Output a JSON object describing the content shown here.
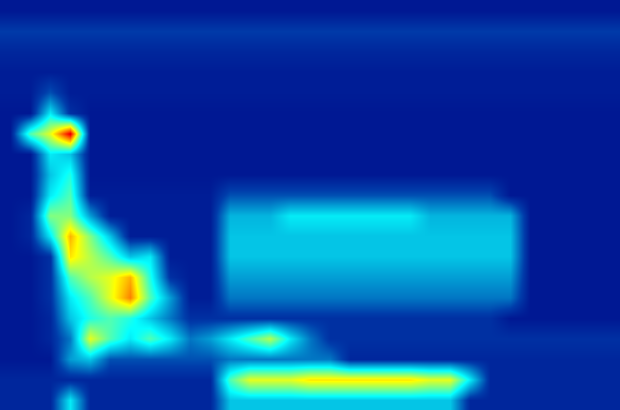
{
  "chart_data": {
    "type": "heatmap",
    "tick_labels": false,
    "zlim": [
      0,
      1
    ],
    "cells": [
      [
        0.05,
        0.05,
        0.05,
        0.05,
        0.05,
        0.05,
        0.05,
        0.05,
        0.05,
        0.05,
        0.05,
        0.05,
        0.05,
        0.05,
        0.05,
        0.05,
        0.05,
        0.05,
        0.05,
        0.05,
        0.05,
        0.05,
        0.05,
        0.05,
        0.05,
        0.05,
        0.05,
        0.05,
        0.05,
        0.05,
        0.05
      ],
      [
        0.12,
        0.12,
        0.12,
        0.12,
        0.12,
        0.12,
        0.12,
        0.12,
        0.12,
        0.12,
        0.12,
        0.12,
        0.12,
        0.12,
        0.12,
        0.12,
        0.12,
        0.12,
        0.12,
        0.12,
        0.12,
        0.12,
        0.12,
        0.12,
        0.12,
        0.12,
        0.12,
        0.12,
        0.12,
        0.12,
        0.12
      ],
      [
        0.08,
        0.08,
        0.08,
        0.08,
        0.08,
        0.08,
        0.08,
        0.08,
        0.08,
        0.08,
        0.08,
        0.08,
        0.08,
        0.08,
        0.08,
        0.08,
        0.08,
        0.08,
        0.08,
        0.08,
        0.08,
        0.08,
        0.08,
        0.08,
        0.08,
        0.08,
        0.08,
        0.08,
        0.08,
        0.08,
        0.08
      ],
      [
        0.06,
        0.06,
        0.06,
        0.06,
        0.06,
        0.06,
        0.06,
        0.06,
        0.06,
        0.06,
        0.06,
        0.06,
        0.06,
        0.06,
        0.06,
        0.06,
        0.06,
        0.06,
        0.06,
        0.06,
        0.06,
        0.06,
        0.06,
        0.06,
        0.06,
        0.06,
        0.06,
        0.06,
        0.06,
        0.06,
        0.06
      ],
      [
        0.06,
        0.06,
        0.15,
        0.06,
        0.06,
        0.06,
        0.06,
        0.06,
        0.06,
        0.06,
        0.06,
        0.06,
        0.06,
        0.06,
        0.06,
        0.06,
        0.06,
        0.06,
        0.06,
        0.06,
        0.06,
        0.06,
        0.06,
        0.06,
        0.06,
        0.06,
        0.06,
        0.06,
        0.06,
        0.06,
        0.06
      ],
      [
        0.05,
        0.05,
        0.35,
        0.1,
        0.05,
        0.05,
        0.05,
        0.05,
        0.05,
        0.05,
        0.05,
        0.05,
        0.05,
        0.05,
        0.05,
        0.05,
        0.05,
        0.05,
        0.05,
        0.05,
        0.05,
        0.05,
        0.05,
        0.05,
        0.05,
        0.05,
        0.05,
        0.05,
        0.05,
        0.05,
        0.05
      ],
      [
        0.05,
        0.45,
        0.6,
        0.9,
        0.05,
        0.05,
        0.05,
        0.05,
        0.05,
        0.05,
        0.05,
        0.05,
        0.05,
        0.05,
        0.05,
        0.05,
        0.05,
        0.05,
        0.05,
        0.05,
        0.05,
        0.05,
        0.05,
        0.05,
        0.05,
        0.05,
        0.05,
        0.05,
        0.05,
        0.05,
        0.05
      ],
      [
        0.05,
        0.05,
        0.35,
        0.3,
        0.05,
        0.05,
        0.05,
        0.05,
        0.05,
        0.05,
        0.05,
        0.05,
        0.05,
        0.05,
        0.05,
        0.05,
        0.05,
        0.05,
        0.05,
        0.05,
        0.05,
        0.05,
        0.05,
        0.05,
        0.05,
        0.05,
        0.05,
        0.05,
        0.05,
        0.05,
        0.05
      ],
      [
        0.05,
        0.05,
        0.3,
        0.4,
        0.05,
        0.05,
        0.05,
        0.05,
        0.05,
        0.05,
        0.05,
        0.05,
        0.05,
        0.05,
        0.05,
        0.05,
        0.05,
        0.05,
        0.05,
        0.05,
        0.05,
        0.05,
        0.05,
        0.05,
        0.05,
        0.05,
        0.05,
        0.05,
        0.05,
        0.05,
        0.05
      ],
      [
        0.05,
        0.05,
        0.35,
        0.45,
        0.06,
        0.06,
        0.06,
        0.06,
        0.06,
        0.06,
        0.06,
        0.15,
        0.15,
        0.15,
        0.15,
        0.15,
        0.15,
        0.15,
        0.15,
        0.15,
        0.15,
        0.15,
        0.15,
        0.15,
        0.15,
        0.05,
        0.05,
        0.05,
        0.05,
        0.05,
        0.05
      ],
      [
        0.05,
        0.08,
        0.5,
        0.5,
        0.25,
        0.06,
        0.06,
        0.06,
        0.06,
        0.06,
        0.06,
        0.28,
        0.28,
        0.28,
        0.35,
        0.35,
        0.35,
        0.35,
        0.35,
        0.35,
        0.35,
        0.28,
        0.28,
        0.28,
        0.28,
        0.28,
        0.05,
        0.05,
        0.05,
        0.05,
        0.05
      ],
      [
        0.05,
        0.08,
        0.35,
        0.7,
        0.5,
        0.3,
        0.06,
        0.06,
        0.06,
        0.06,
        0.06,
        0.3,
        0.3,
        0.3,
        0.3,
        0.3,
        0.3,
        0.3,
        0.3,
        0.3,
        0.3,
        0.3,
        0.3,
        0.3,
        0.3,
        0.3,
        0.05,
        0.05,
        0.05,
        0.05,
        0.05
      ],
      [
        0.05,
        0.05,
        0.1,
        0.65,
        0.55,
        0.45,
        0.3,
        0.35,
        0.06,
        0.06,
        0.06,
        0.3,
        0.3,
        0.3,
        0.3,
        0.3,
        0.3,
        0.3,
        0.3,
        0.3,
        0.3,
        0.3,
        0.3,
        0.3,
        0.3,
        0.3,
        0.05,
        0.05,
        0.05,
        0.05,
        0.05
      ],
      [
        0.05,
        0.05,
        0.1,
        0.45,
        0.55,
        0.6,
        0.7,
        0.4,
        0.1,
        0.06,
        0.06,
        0.25,
        0.25,
        0.25,
        0.25,
        0.25,
        0.25,
        0.25,
        0.25,
        0.25,
        0.25,
        0.25,
        0.25,
        0.25,
        0.25,
        0.25,
        0.05,
        0.05,
        0.05,
        0.05,
        0.05
      ],
      [
        0.05,
        0.05,
        0.1,
        0.35,
        0.45,
        0.6,
        0.75,
        0.45,
        0.25,
        0.06,
        0.06,
        0.2,
        0.2,
        0.2,
        0.2,
        0.2,
        0.2,
        0.2,
        0.2,
        0.2,
        0.2,
        0.2,
        0.2,
        0.2,
        0.2,
        0.2,
        0.05,
        0.05,
        0.05,
        0.05,
        0.05
      ],
      [
        0.05,
        0.05,
        0.08,
        0.3,
        0.4,
        0.45,
        0.4,
        0.3,
        0.2,
        0.1,
        0.1,
        0.1,
        0.1,
        0.1,
        0.1,
        0.1,
        0.1,
        0.1,
        0.1,
        0.1,
        0.1,
        0.1,
        0.1,
        0.1,
        0.1,
        0.05,
        0.05,
        0.05,
        0.05,
        0.05,
        0.05
      ],
      [
        0.05,
        0.05,
        0.08,
        0.2,
        0.6,
        0.45,
        0.35,
        0.45,
        0.35,
        0.2,
        0.25,
        0.35,
        0.45,
        0.55,
        0.35,
        0.2,
        0.1,
        0.1,
        0.1,
        0.1,
        0.1,
        0.1,
        0.1,
        0.1,
        0.1,
        0.1,
        0.1,
        0.1,
        0.1,
        0.1,
        0.1
      ],
      [
        0.05,
        0.05,
        0.05,
        0.25,
        0.3,
        0.15,
        0.15,
        0.15,
        0.15,
        0.15,
        0.15,
        0.2,
        0.2,
        0.2,
        0.2,
        0.2,
        0.2,
        0.08,
        0.08,
        0.08,
        0.08,
        0.08,
        0.08,
        0.08,
        0.08,
        0.08,
        0.08,
        0.08,
        0.08,
        0.08,
        0.08
      ],
      [
        0.08,
        0.08,
        0.08,
        0.08,
        0.08,
        0.08,
        0.08,
        0.08,
        0.08,
        0.08,
        0.08,
        0.45,
        0.6,
        0.6,
        0.6,
        0.65,
        0.65,
        0.65,
        0.65,
        0.65,
        0.65,
        0.6,
        0.6,
        0.35,
        0.08,
        0.08,
        0.08,
        0.08,
        0.08,
        0.08,
        0.08
      ],
      [
        0.08,
        0.08,
        0.08,
        0.35,
        0.08,
        0.08,
        0.08,
        0.08,
        0.08,
        0.08,
        0.08,
        0.3,
        0.3,
        0.3,
        0.3,
        0.3,
        0.3,
        0.3,
        0.3,
        0.3,
        0.3,
        0.3,
        0.3,
        0.08,
        0.08,
        0.08,
        0.08,
        0.08,
        0.08,
        0.08,
        0.08
      ]
    ]
  }
}
